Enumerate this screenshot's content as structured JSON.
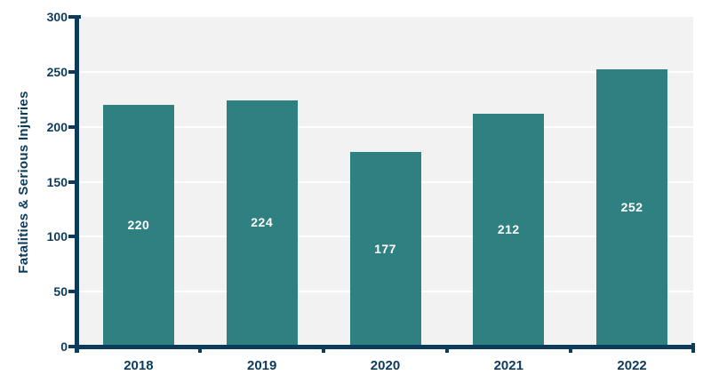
{
  "chart_data": {
    "type": "bar",
    "title": "",
    "xlabel": "",
    "ylabel": "Fatalities & Serious Injuries",
    "categories": [
      "2018",
      "2019",
      "2020",
      "2021",
      "2022"
    ],
    "values": [
      220,
      224,
      177,
      212,
      252
    ],
    "bar_labels": [
      "220",
      "224",
      "177",
      "212",
      "252"
    ],
    "ylim": [
      0,
      300
    ],
    "yticks": [
      0,
      50,
      100,
      150,
      200,
      250,
      300
    ],
    "gridline_values": [
      50,
      100,
      150,
      200,
      250
    ],
    "grid": true,
    "legend": false
  },
  "colors": {
    "bar": "#2f8080",
    "axis": "#0d3b5c",
    "tick_label": "#0d3b5c",
    "bar_label": "#ffffff",
    "plot_background": "#f2f2f2",
    "gridline": "#ffffff",
    "page_background": "#ffffff"
  }
}
